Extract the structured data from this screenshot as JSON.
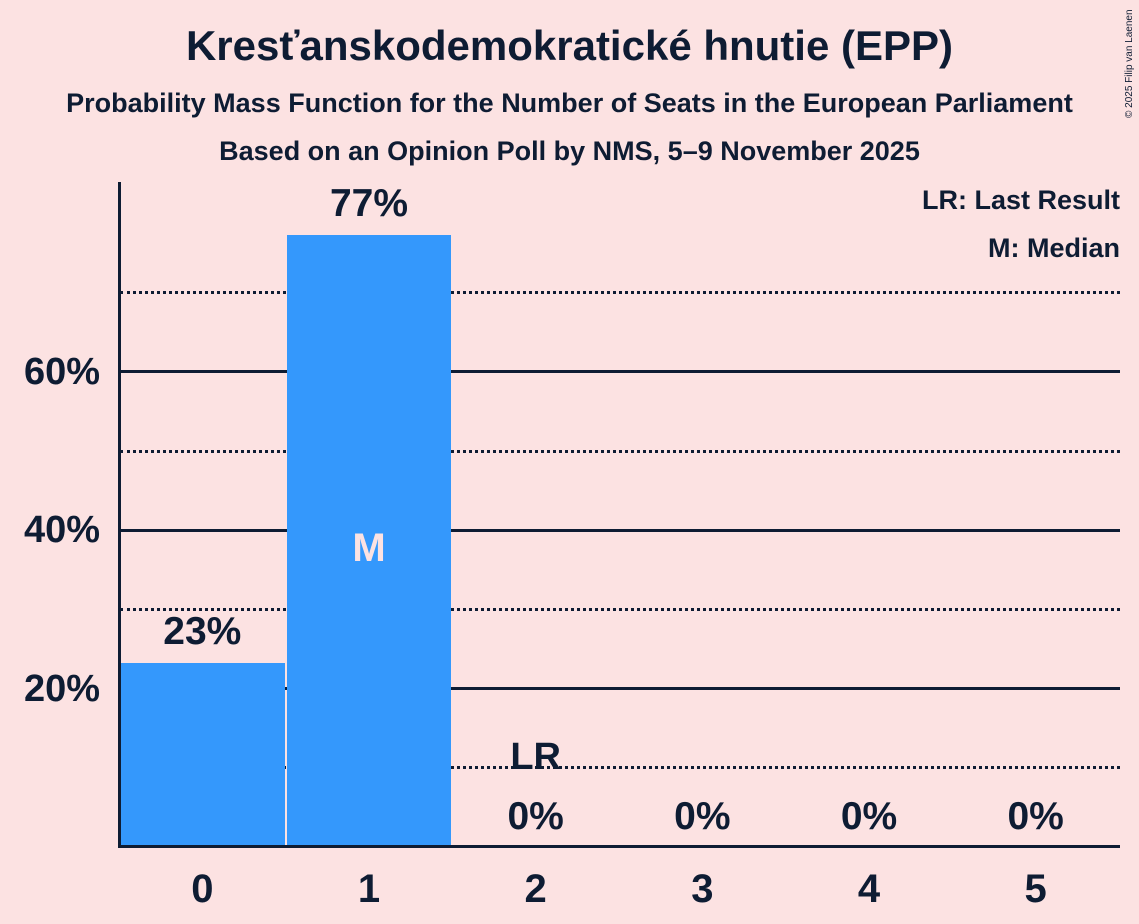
{
  "header": {
    "title": "Kresťanskodemokratické hnutie (EPP)",
    "subtitle1": "Probability Mass Function for the Number of Seats in the European Parliament",
    "subtitle2": "Based on an Opinion Poll by NMS, 5–9 November 2025"
  },
  "copyright": "© 2025 Filip van Laenen",
  "colors": {
    "background": "#fce2e2",
    "bar": "#3498fc",
    "text": "#0e1c33",
    "median_label_on_bar": "#fce2e2"
  },
  "chart_data": {
    "type": "bar",
    "title": "Kresťanskodemokratické hnutie (EPP)",
    "subtitle": "Probability Mass Function for the Number of Seats in the European Parliament",
    "source_note": "Based on an Opinion Poll by NMS, 5–9 November 2025",
    "categories": [
      "0",
      "1",
      "2",
      "3",
      "4",
      "5"
    ],
    "values": [
      23,
      77,
      0,
      0,
      0,
      0
    ],
    "value_labels": [
      "23%",
      "77%",
      "0%",
      "0%",
      "0%",
      "0%"
    ],
    "ylim": [
      0,
      84
    ],
    "yticks": [
      {
        "pct": 20,
        "label": "20%"
      },
      {
        "pct": 40,
        "label": "40%"
      },
      {
        "pct": 60,
        "label": "60%"
      }
    ],
    "solid_gridlines_pct": [
      20,
      40,
      60
    ],
    "dotted_gridlines_pct": [
      10,
      30,
      50,
      70
    ],
    "grid": "horizontal; solid at 20/40/60, dotted at 10/30/50/70",
    "legend_position": "top-right",
    "legend": [
      "LR: Last Result",
      "M: Median"
    ],
    "median_index": 1,
    "median_marker_label": "M",
    "last_result_index": 2,
    "last_result_marker_label": "LR"
  }
}
